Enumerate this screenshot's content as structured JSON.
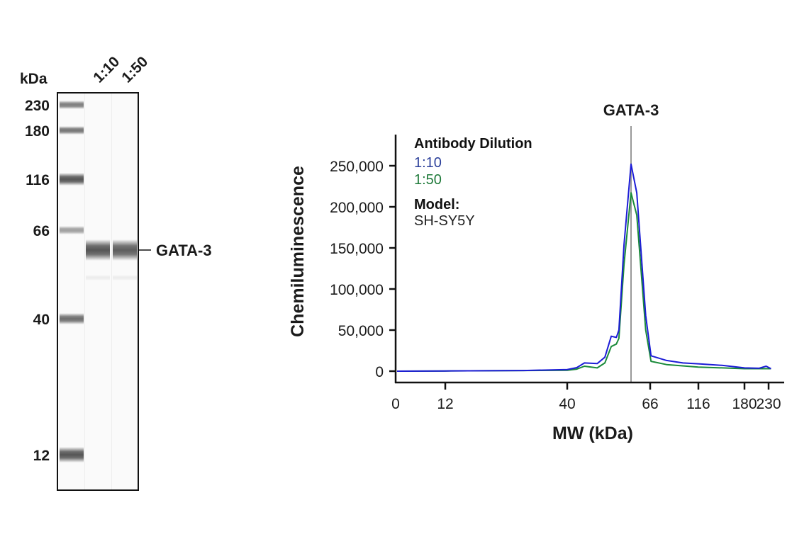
{
  "blot": {
    "unit_label": "kDa",
    "lanes": [
      "1:10",
      "1:50"
    ],
    "marker_labels": [
      "230",
      "180",
      "116",
      "66",
      "40",
      "12"
    ],
    "target_label": "GATA-3"
  },
  "chart_data": {
    "type": "line",
    "title": "",
    "annotation": "GATA-3",
    "annotation_x": 60,
    "xlabel": "MW (kDa)",
    "ylabel": "Chemiluminescence",
    "x_ticks": [
      0,
      12,
      40,
      66,
      116,
      180,
      230
    ],
    "x_tick_labels": [
      "0",
      "12",
      "40",
      "66",
      "116",
      "180",
      "230"
    ],
    "y_ticks": [
      0,
      50000,
      100000,
      150000,
      200000,
      250000
    ],
    "y_tick_labels": [
      "0",
      "50,000",
      "100,000",
      "150,000",
      "200,000",
      "250,000"
    ],
    "ylim": [
      0,
      270000
    ],
    "grid": false,
    "legend": {
      "title": "Antibody Dilution",
      "model_title": "Model:",
      "model_value": "SH-SY5Y",
      "placement": "top-left"
    },
    "series": [
      {
        "name": "1:10",
        "color": "#1c1cd6",
        "label_color": "#2b3f9a",
        "x": [
          0,
          12,
          30,
          40,
          43,
          45.4,
          49.4,
          51.8,
          53.8,
          55.4,
          56.2,
          57.8,
          60,
          61.8,
          64.6,
          66.9,
          83,
          100,
          116,
          150,
          180,
          210,
          225,
          235
        ],
        "y": [
          0,
          300,
          800,
          2000,
          4300,
          10000,
          9200,
          17000,
          42500,
          41000,
          50000,
          154000,
          252000,
          217000,
          67500,
          18700,
          13000,
          10000,
          9000,
          7000,
          4000,
          3500,
          6000,
          3000
        ]
      },
      {
        "name": "1:50",
        "color": "#1a8a3a",
        "label_color": "#1f7a3a",
        "x": [
          0,
          12,
          30,
          40,
          43,
          45.4,
          49.4,
          51.8,
          53.8,
          55.4,
          56.2,
          57.8,
          60,
          61.8,
          64.6,
          66.9,
          83,
          116,
          180,
          235
        ],
        "y": [
          0,
          300,
          800,
          1000,
          2500,
          6000,
          4000,
          10000,
          30000,
          33000,
          40000,
          130000,
          217000,
          190000,
          50000,
          12000,
          8000,
          5000,
          3000,
          3000
        ]
      }
    ]
  }
}
